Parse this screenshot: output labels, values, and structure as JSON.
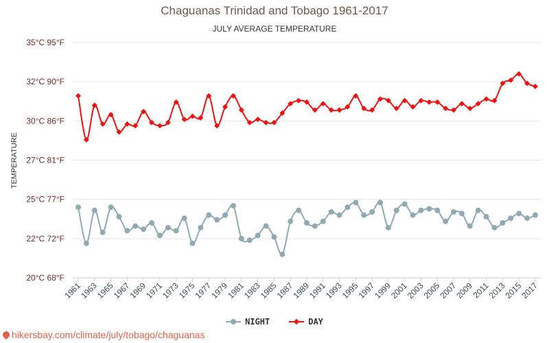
{
  "chart_data": {
    "type": "line",
    "title": "Chaguanas Trinidad and Tobago 1961-2017",
    "subtitle": "JULY AVERAGE TEMPERATURE",
    "ylabel": "TEMPERATURE",
    "ylim": [
      20,
      35
    ],
    "y_ticks": [
      {
        "value": 20,
        "label": "20°C 68°F"
      },
      {
        "value": 22.5,
        "label": "22°C 72°F"
      },
      {
        "value": 25,
        "label": "25°C 77°F"
      },
      {
        "value": 27.5,
        "label": "27°C 81°F"
      },
      {
        "value": 30,
        "label": "30°C 86°F"
      },
      {
        "value": 32.5,
        "label": "32°C 90°F"
      },
      {
        "value": 35,
        "label": "35°C 95°F"
      }
    ],
    "x": [
      1961,
      1962,
      1963,
      1964,
      1965,
      1966,
      1967,
      1968,
      1969,
      1970,
      1971,
      1972,
      1973,
      1974,
      1975,
      1976,
      1977,
      1978,
      1979,
      1980,
      1981,
      1982,
      1983,
      1984,
      1985,
      1986,
      1987,
      1988,
      1989,
      1990,
      1991,
      1992,
      1993,
      1994,
      1995,
      1996,
      1997,
      1998,
      1999,
      2000,
      2001,
      2002,
      2003,
      2004,
      2005,
      2006,
      2007,
      2008,
      2009,
      2010,
      2011,
      2012,
      2013,
      2014,
      2015,
      2016,
      2017
    ],
    "x_tick_labels": [
      "1961",
      "1963",
      "1965",
      "1967",
      "1969",
      "1971",
      "1973",
      "1975",
      "1977",
      "1979",
      "1981",
      "1983",
      "1985",
      "1987",
      "1989",
      "1991",
      "1993",
      "1995",
      "1997",
      "1999",
      "2001",
      "2003",
      "2005",
      "2007",
      "2009",
      "2011",
      "2013",
      "2015",
      "2017"
    ],
    "grid": true,
    "legend_position": "bottom",
    "series": [
      {
        "name": "NIGHT",
        "color": "#90aab3",
        "marker": "circle",
        "values": [
          24.5,
          22.2,
          24.3,
          22.9,
          24.5,
          23.9,
          23.0,
          23.3,
          23.1,
          23.5,
          22.7,
          23.2,
          23.0,
          23.8,
          22.2,
          23.2,
          24.0,
          23.7,
          24.0,
          24.6,
          22.5,
          22.4,
          22.7,
          23.3,
          22.6,
          21.5,
          23.6,
          24.3,
          23.5,
          23.3,
          23.6,
          24.2,
          24.0,
          24.5,
          24.8,
          24.0,
          24.2,
          24.8,
          23.2,
          24.3,
          24.7,
          24.0,
          24.3,
          24.4,
          24.3,
          23.6,
          24.2,
          24.1,
          23.3,
          24.3,
          23.9,
          23.2,
          23.5,
          23.8,
          24.1,
          23.8,
          24.0
        ]
      },
      {
        "name": "DAY",
        "color": "#ee1111",
        "marker": "diamond",
        "values": [
          31.6,
          28.8,
          31.0,
          29.8,
          30.4,
          29.3,
          29.8,
          29.7,
          30.6,
          29.9,
          29.7,
          29.9,
          31.2,
          30.1,
          30.3,
          30.2,
          31.6,
          29.7,
          30.9,
          31.6,
          30.7,
          29.9,
          30.1,
          29.9,
          29.9,
          30.5,
          31.1,
          31.3,
          31.2,
          30.7,
          31.1,
          30.7,
          30.7,
          30.9,
          31.6,
          30.8,
          30.7,
          31.4,
          31.3,
          30.8,
          31.3,
          30.9,
          31.3,
          31.2,
          31.2,
          30.8,
          30.7,
          31.1,
          30.8,
          31.1,
          31.4,
          31.3,
          32.4,
          32.6,
          33.0,
          32.4,
          32.2
        ]
      }
    ]
  },
  "legend": {
    "night_label": "NIGHT",
    "day_label": "DAY"
  },
  "footer": {
    "source_text": "hikersbay.com/climate/july/tobago/chaguanas",
    "icon": "pin-icon"
  }
}
